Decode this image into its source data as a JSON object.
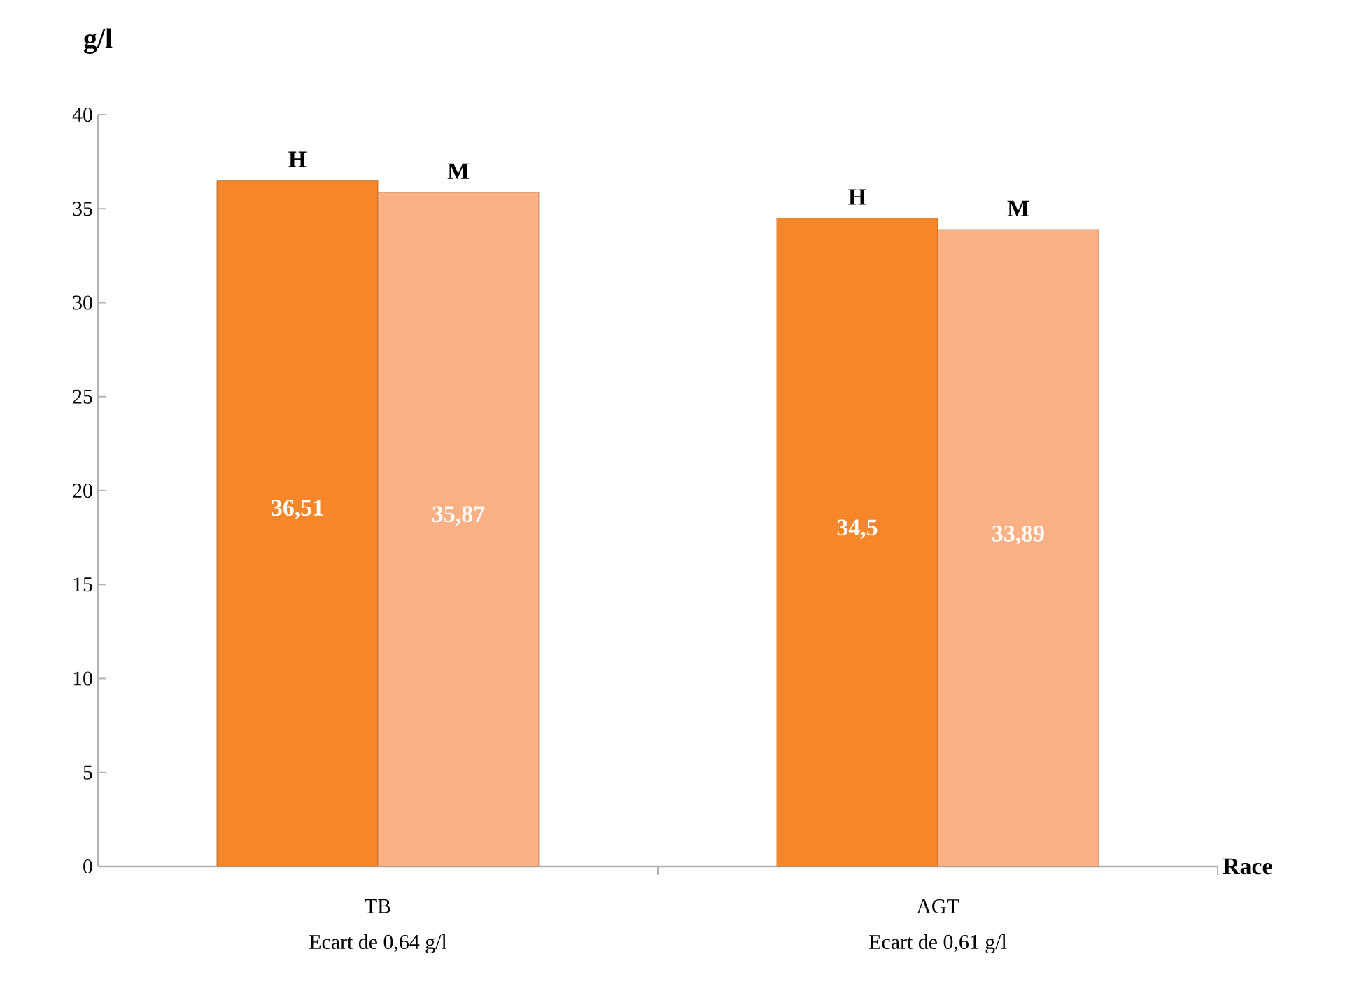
{
  "chart_data": {
    "type": "bar",
    "ylabel": "g/l",
    "xlabel": "Race",
    "categories": [
      "TB",
      "AGT"
    ],
    "series": [
      {
        "name": "H",
        "color": "#f5862a",
        "values": [
          36.51,
          34.5
        ],
        "value_labels": [
          "36,51",
          "34,5"
        ]
      },
      {
        "name": "M",
        "color": "#fbb183",
        "values": [
          35.87,
          33.89
        ],
        "value_labels": [
          "35,87",
          "33,89"
        ]
      }
    ],
    "ylim": [
      0,
      40
    ],
    "yticks": [
      0,
      5,
      10,
      15,
      20,
      25,
      30,
      35,
      40
    ],
    "annotations": [
      "Ecart de 0,64 g/l",
      "Ecart de 0,61 g/l"
    ],
    "grid": false,
    "legend": false
  }
}
